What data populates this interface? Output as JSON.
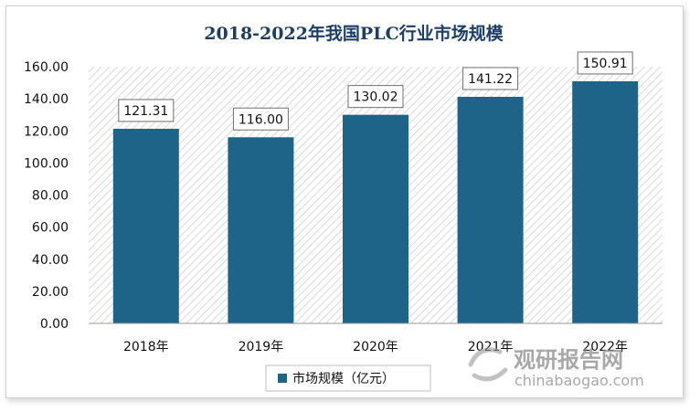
{
  "chart_data": {
    "type": "bar",
    "title": "2018-2022年我国PLC行业市场规模",
    "categories": [
      "2018年",
      "2019年",
      "2020年",
      "2021年",
      "2022年"
    ],
    "series": [
      {
        "name": "市场规模（亿元）",
        "values": [
          121.31,
          116.0,
          130.02,
          141.22,
          150.91
        ]
      }
    ],
    "data_labels": [
      "121.31",
      "116.00",
      "130.02",
      "141.22",
      "150.91"
    ],
    "y_ticks": [
      "0.00",
      "20.00",
      "40.00",
      "60.00",
      "80.00",
      "100.00",
      "120.00",
      "140.00",
      "160.00"
    ],
    "ylim": [
      0,
      160
    ],
    "grid": false,
    "legend_position": "bottom",
    "bar_color": "#1d6488",
    "plot_background": "hatched light gray"
  },
  "watermark": {
    "name": "观研报告网",
    "url": "chinabaogao.com"
  },
  "colors": {
    "title": "#1b3f66",
    "bar": "#1d6488"
  }
}
